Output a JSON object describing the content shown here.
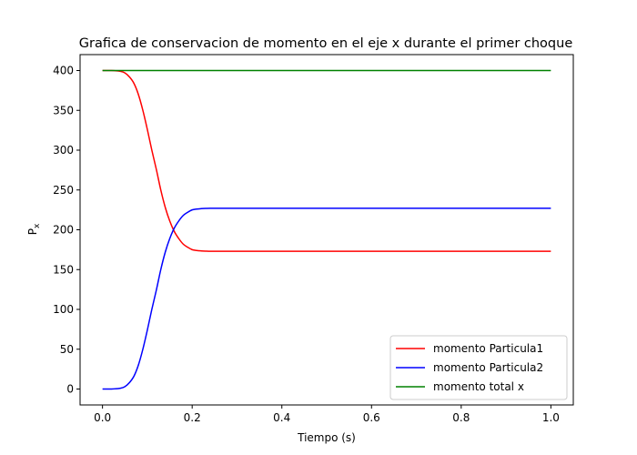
{
  "chart_data": {
    "type": "line",
    "title": "Grafica de conservacion de momento en el eje x durante el primer choque",
    "xlabel": "Tiempo (s)",
    "ylabel": {
      "base": "P",
      "sub": "x"
    },
    "xlim": [
      -0.05,
      1.05
    ],
    "ylim": [
      -20,
      420
    ],
    "xticks": [
      0.0,
      0.2,
      0.4,
      0.6,
      0.8,
      1.0
    ],
    "xtick_labels": [
      "0.0",
      "0.2",
      "0.4",
      "0.6",
      "0.8",
      "1.0"
    ],
    "yticks": [
      0,
      50,
      100,
      150,
      200,
      250,
      300,
      350,
      400
    ],
    "ytick_labels": [
      "0",
      "50",
      "100",
      "150",
      "200",
      "250",
      "300",
      "350",
      "400"
    ],
    "grid": false,
    "legend_position": "lower-right",
    "series": [
      {
        "name": "momento Particula1",
        "color": "#ff0000",
        "x": [
          0.0,
          0.02,
          0.04,
          0.05,
          0.06,
          0.07,
          0.08,
          0.09,
          0.1,
          0.11,
          0.12,
          0.13,
          0.14,
          0.15,
          0.16,
          0.17,
          0.18,
          0.19,
          0.2,
          0.21,
          0.22,
          0.23,
          0.24,
          0.26,
          0.3,
          0.4,
          0.6,
          0.8,
          1.0
        ],
        "y": [
          400,
          400,
          399,
          397,
          392,
          384,
          370,
          350,
          326,
          300,
          276,
          250,
          228,
          211,
          198,
          189,
          182,
          178,
          175,
          174,
          173.5,
          173.2,
          173,
          173,
          173,
          173,
          173,
          173,
          173
        ]
      },
      {
        "name": "momento Particula2",
        "color": "#0000ff",
        "x": [
          0.0,
          0.02,
          0.04,
          0.05,
          0.06,
          0.07,
          0.08,
          0.09,
          0.1,
          0.11,
          0.12,
          0.13,
          0.14,
          0.15,
          0.16,
          0.17,
          0.18,
          0.19,
          0.2,
          0.21,
          0.22,
          0.23,
          0.24,
          0.26,
          0.3,
          0.4,
          0.6,
          0.8,
          1.0
        ],
        "y": [
          0,
          0,
          1,
          3,
          8,
          16,
          30,
          50,
          74,
          100,
          124,
          150,
          172,
          189,
          202,
          211,
          218,
          222,
          225,
          226,
          226.5,
          226.8,
          227,
          227,
          227,
          227,
          227,
          227,
          227
        ]
      },
      {
        "name": "momento total x",
        "color": "#008000",
        "x": [
          0.0,
          1.0
        ],
        "y": [
          400,
          400
        ]
      }
    ]
  }
}
